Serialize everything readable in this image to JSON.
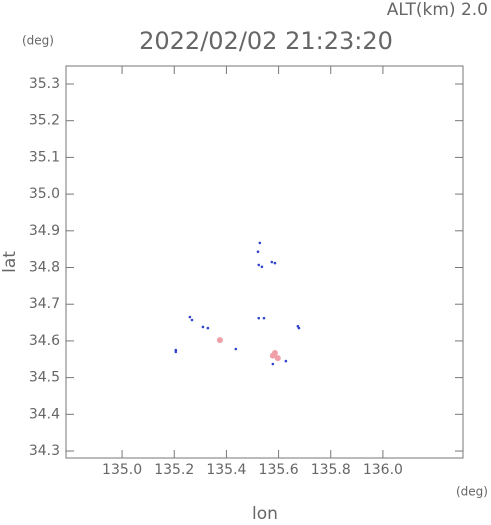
{
  "chart_data": {
    "type": "scatter",
    "title": "2022/02/02 21:23:20",
    "subtitle": "ALT(km) 2.0",
    "y_unit": "(deg)",
    "x_unit": "(deg)",
    "xlabel": "lon",
    "ylabel": "lat",
    "xlim": [
      134.785,
      136.307
    ],
    "ylim": [
      34.281,
      35.349
    ],
    "xticks": [
      {
        "value": 135,
        "label": "135.0"
      },
      135.2,
      135.4,
      135.6,
      135.8,
      {
        "value": 136,
        "label": "136.0"
      }
    ],
    "yticks": [
      34.3,
      34.4,
      34.5,
      34.6,
      34.7,
      34.8,
      34.9,
      {
        "value": 35,
        "label": "35.0"
      },
      35.1,
      35.2,
      35.3
    ],
    "series": [
      {
        "color": "#3344cc",
        "x": [
          135.528,
          135.521,
          135.524,
          135.536,
          135.574,
          135.586,
          135.524,
          135.544,
          135.26,
          135.268,
          135.31,
          135.329,
          135.436,
          135.206,
          135.206,
          135.578,
          135.628,
          135.674,
          135.678
        ],
        "values": [
          34.867,
          34.843,
          34.807,
          34.802,
          34.815,
          34.812,
          34.662,
          34.662,
          34.665,
          34.657,
          34.638,
          34.635,
          34.578,
          34.575,
          34.57,
          34.537,
          34.545,
          34.64,
          34.635
        ]
      },
      {
        "color": "#f0a0a8",
        "x": [
          135.375,
          135.586,
          135.597,
          135.578
        ],
        "values": [
          34.602,
          34.567,
          34.553,
          34.56
        ]
      }
    ]
  }
}
